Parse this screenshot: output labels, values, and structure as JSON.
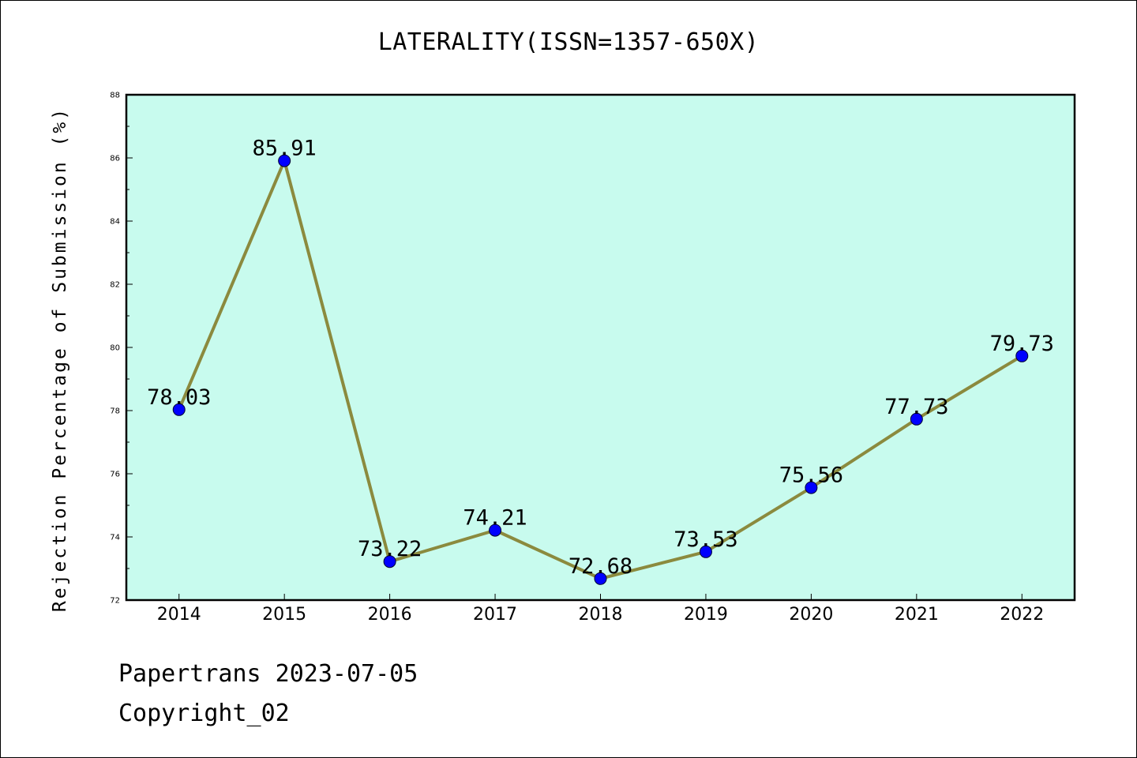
{
  "chart_data": {
    "type": "line",
    "title": "LATERALITY(ISSN=1357-650X)",
    "xlabel": "",
    "ylabel": "Rejection Percentage of Submission (%)",
    "categories": [
      "2014",
      "2015",
      "2016",
      "2017",
      "2018",
      "2019",
      "2020",
      "2021",
      "2022"
    ],
    "values": [
      78.03,
      85.91,
      73.22,
      74.21,
      72.68,
      73.53,
      75.56,
      77.73,
      79.73
    ],
    "data_labels": [
      "78.03",
      "85.91",
      "73.22",
      "74.21",
      "72.68",
      "73.53",
      "75.56",
      "77.73",
      "79.73"
    ],
    "ylim": [
      72,
      88
    ],
    "yticks": [
      72,
      74,
      76,
      78,
      80,
      82,
      84,
      86,
      88
    ],
    "grid": false,
    "colors": {
      "plot_background": "#c8fbee",
      "line": "#8b8a3e",
      "marker": "#0000ff"
    }
  },
  "footer": {
    "line1": "Papertrans 2023-07-05",
    "line2": "Copyright_02"
  }
}
